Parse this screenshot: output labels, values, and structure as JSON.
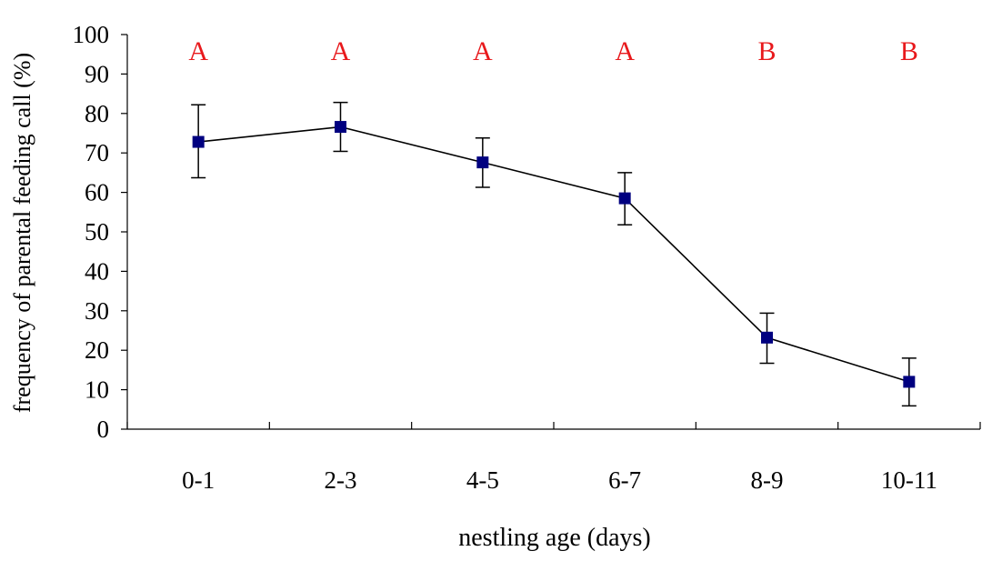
{
  "chart_data": {
    "type": "line",
    "title": "",
    "xlabel": "nestling age (days)",
    "ylabel": "frequency of parental feeding call (%)",
    "categories": [
      "0-1",
      "2-3",
      "4-5",
      "6-7",
      "8-9",
      "10-11"
    ],
    "ylim": [
      0,
      100
    ],
    "yticks": [
      0,
      10,
      20,
      30,
      40,
      50,
      60,
      70,
      80,
      90,
      100
    ],
    "grid": false,
    "legend": "none",
    "series": [
      {
        "values": [
          72.8,
          76.6,
          67.6,
          58.5,
          23.2,
          12.0
        ],
        "error_upper": [
          82.2,
          82.8,
          73.8,
          65.0,
          29.4,
          18.0
        ],
        "error_lower": [
          63.7,
          70.4,
          61.3,
          51.8,
          16.7,
          5.9
        ],
        "color": "#000080",
        "line_color": "#000000",
        "marker": "square"
      }
    ],
    "group_letters": [
      "A",
      "A",
      "A",
      "A",
      "B",
      "B"
    ],
    "group_letter_color": "#e8191c"
  }
}
